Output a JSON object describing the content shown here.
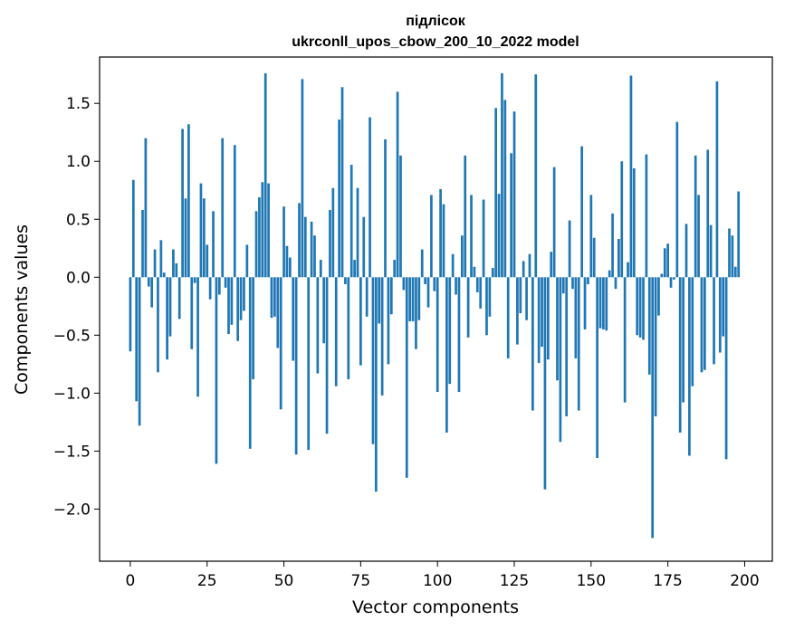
{
  "chart_data": {
    "type": "bar",
    "title_lines": [
      "підлісок",
      "ukrconll_upos_cbow_200_10_2022 model"
    ],
    "xlabel": "Vector components",
    "ylabel": "Components values",
    "xlim": [
      -10,
      209
    ],
    "ylim": [
      -2.45,
      1.9
    ],
    "xticks": [
      0,
      25,
      50,
      75,
      100,
      125,
      150,
      175,
      200
    ],
    "yticks": [
      -2.0,
      -1.5,
      -1.0,
      -0.5,
      0.0,
      0.5,
      1.0,
      1.5
    ],
    "ytick_labels": [
      "−2.0",
      "−1.5",
      "−1.0",
      "−0.5",
      "0.0",
      "0.5",
      "1.0",
      "1.5"
    ],
    "bar_color": "#1f77b4",
    "values": [
      -0.64,
      0.84,
      -1.07,
      -1.28,
      0.58,
      1.2,
      -0.08,
      -0.26,
      0.24,
      -0.82,
      0.32,
      0.04,
      -0.71,
      -0.51,
      0.24,
      0.12,
      -0.36,
      1.28,
      0.68,
      1.32,
      -0.62,
      -0.05,
      -1.03,
      0.81,
      0.68,
      0.28,
      -0.19,
      0.57,
      -1.61,
      -0.15,
      1.2,
      -0.09,
      -0.49,
      -0.41,
      1.14,
      -0.55,
      -0.37,
      -0.29,
      0.28,
      -1.48,
      -0.88,
      0.57,
      0.69,
      0.82,
      1.76,
      0.81,
      -0.35,
      -0.34,
      -0.61,
      -1.14,
      0.61,
      0.27,
      0.17,
      -0.72,
      -1.53,
      0.64,
      1.71,
      0.52,
      -1.49,
      0.48,
      0.36,
      -0.83,
      0.15,
      -0.57,
      -1.35,
      0.58,
      0.77,
      -0.94,
      1.36,
      1.64,
      -0.06,
      -0.88,
      0.97,
      0.15,
      0.77,
      -0.76,
      0.52,
      -0.34,
      1.38,
      -1.44,
      -1.85,
      -0.4,
      -1.02,
      1.19,
      -0.75,
      -0.32,
      0.15,
      1.6,
      1.05,
      -0.11,
      -1.73,
      -0.38,
      -0.38,
      -0.62,
      -0.37,
      0.24,
      -0.06,
      -0.26,
      0.71,
      -0.12,
      -0.99,
      0.76,
      0.63,
      -1.34,
      -0.92,
      0.2,
      -0.15,
      -0.99,
      0.36,
      1.05,
      -0.52,
      0.71,
      0.09,
      -0.13,
      -0.27,
      0.67,
      -0.5,
      -0.34,
      0.08,
      1.46,
      0.72,
      1.76,
      1.53,
      -0.7,
      1.07,
      1.43,
      -0.58,
      -0.31,
      0.14,
      -0.37,
      0.2,
      -1.15,
      1.75,
      -0.74,
      -0.6,
      -1.83,
      -0.71,
      0.22,
      0.95,
      -0.89,
      -1.42,
      -0.14,
      -1.2,
      0.49,
      -0.1,
      -0.7,
      -1.15,
      1.13,
      -0.45,
      -0.06,
      0.71,
      0.34,
      -1.56,
      -0.44,
      -0.45,
      -0.46,
      0.06,
      0.55,
      -0.1,
      0.33,
      1.0,
      -1.08,
      0.13,
      1.74,
      0.94,
      -0.5,
      -0.52,
      -0.54,
      1.06,
      -0.84,
      -2.25,
      -1.2,
      -0.33,
      0.03,
      0.25,
      0.29,
      -0.09,
      -0.02,
      1.34,
      -1.34,
      -1.08,
      0.46,
      -1.54,
      -0.94,
      1.05,
      0.71,
      -0.82,
      -0.8,
      1.1,
      0.45,
      -0.75,
      1.69,
      -0.65,
      -0.51,
      -1.57,
      0.42,
      0.36,
      0.09,
      0.74
    ]
  }
}
